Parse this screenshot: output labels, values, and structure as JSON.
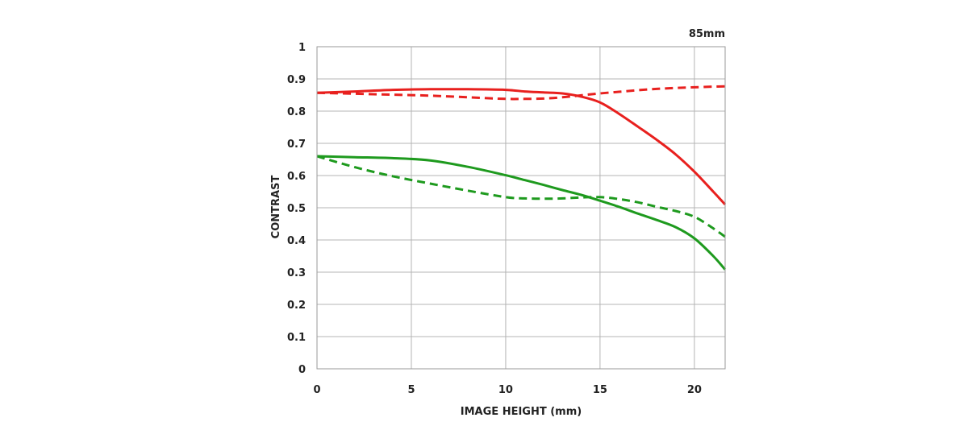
{
  "chart_data": {
    "type": "line",
    "title": "85mm",
    "xlabel": "IMAGE HEIGHT (mm)",
    "ylabel": "CONTRAST",
    "xlim": [
      0,
      21.63
    ],
    "ylim": [
      0,
      1
    ],
    "xticks": [
      0,
      5,
      10,
      15,
      20
    ],
    "yticks": [
      0,
      0.1,
      0.2,
      0.3,
      0.4,
      0.5,
      0.6,
      0.7,
      0.8,
      0.9,
      1
    ],
    "ytick_labels": [
      "0",
      "0.1",
      "0.2",
      "0.3",
      "0.4",
      "0.5",
      "0.6",
      "0.7",
      "0.8",
      "0.9",
      "1"
    ],
    "grid": true,
    "legend": "none",
    "series": [
      {
        "color": "#e8201e",
        "style": "solid",
        "x": [
          0,
          2,
          4,
          6,
          8,
          10,
          11,
          12,
          13,
          14,
          15,
          16,
          17,
          18,
          19,
          20,
          21,
          21.63
        ],
        "y": [
          0.857,
          0.861,
          0.866,
          0.868,
          0.868,
          0.866,
          0.861,
          0.858,
          0.855,
          0.845,
          0.827,
          0.792,
          0.752,
          0.711,
          0.666,
          0.612,
          0.55,
          0.51
        ]
      },
      {
        "color": "#e8201e",
        "style": "dashed",
        "x": [
          0,
          2,
          4,
          6,
          8,
          10,
          11,
          12,
          13,
          14,
          15,
          16,
          17,
          18,
          19,
          20,
          21,
          21.63
        ],
        "y": [
          0.857,
          0.854,
          0.851,
          0.848,
          0.843,
          0.838,
          0.838,
          0.839,
          0.843,
          0.849,
          0.855,
          0.86,
          0.865,
          0.869,
          0.872,
          0.874,
          0.876,
          0.877
        ]
      },
      {
        "color": "#1e9a1e",
        "style": "solid",
        "x": [
          0,
          2,
          4,
          6,
          8,
          10,
          11,
          12,
          13,
          14,
          15,
          16,
          17,
          18,
          19,
          20,
          21,
          21.63
        ],
        "y": [
          0.66,
          0.657,
          0.654,
          0.647,
          0.627,
          0.601,
          0.586,
          0.571,
          0.555,
          0.54,
          0.522,
          0.503,
          0.482,
          0.462,
          0.44,
          0.405,
          0.35,
          0.308
        ]
      },
      {
        "color": "#1e9a1e",
        "style": "dashed",
        "x": [
          0,
          2,
          4,
          6,
          8,
          10,
          11,
          12,
          13,
          14,
          15,
          16,
          17,
          18,
          19,
          20,
          21,
          21.63
        ],
        "y": [
          0.66,
          0.626,
          0.598,
          0.575,
          0.553,
          0.533,
          0.529,
          0.528,
          0.529,
          0.532,
          0.533,
          0.527,
          0.517,
          0.503,
          0.49,
          0.472,
          0.436,
          0.41
        ]
      }
    ]
  }
}
